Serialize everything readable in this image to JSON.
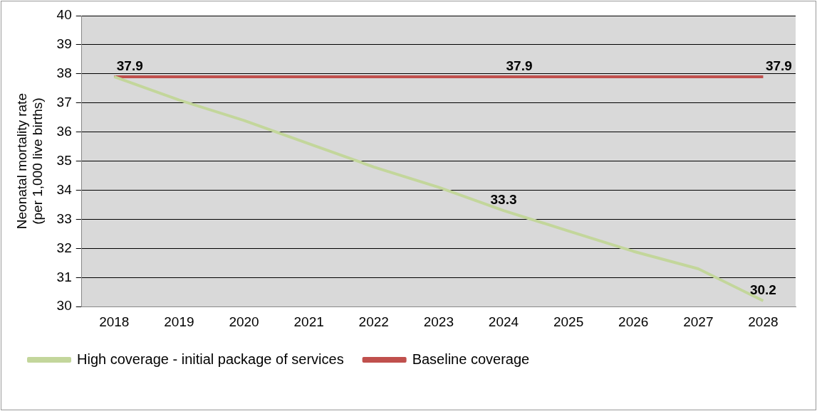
{
  "chart_data": {
    "type": "line",
    "ylabel": "Neonatal mortality rate\n(per 1,000 live births)",
    "categories": [
      "2018",
      "2019",
      "2020",
      "2021",
      "2022",
      "2023",
      "2024",
      "2025",
      "2026",
      "2027",
      "2028"
    ],
    "series": [
      {
        "name": "High coverage - initial package of services",
        "color": "#c3d69b",
        "values": [
          37.9,
          37.1,
          36.4,
          35.6,
          34.8,
          34.1,
          33.3,
          32.6,
          31.9,
          31.3,
          30.2
        ],
        "value_labels": [
          null,
          null,
          null,
          null,
          null,
          null,
          "33.3",
          null,
          null,
          null,
          "30.2"
        ]
      },
      {
        "name": "Baseline coverage",
        "color": "#c0504d",
        "values": [
          37.9,
          37.9,
          37.9,
          37.9,
          37.9,
          37.9,
          37.9,
          37.9,
          37.9,
          37.9,
          37.9
        ],
        "value_labels": [
          "37.9",
          null,
          null,
          null,
          null,
          null,
          "37.9",
          null,
          null,
          null,
          "37.9"
        ]
      }
    ],
    "ylim": [
      30,
      40
    ],
    "yticks": [
      30,
      31,
      32,
      33,
      34,
      35,
      36,
      37,
      38,
      39,
      40
    ],
    "grid": "y",
    "legend": "bottom",
    "marker": "none",
    "line_style": "solid"
  }
}
